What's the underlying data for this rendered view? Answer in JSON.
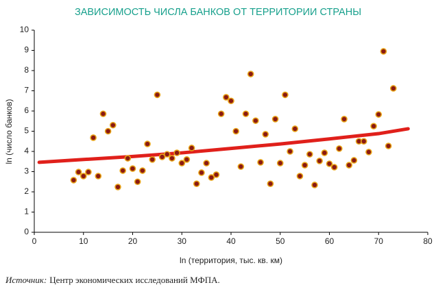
{
  "chart_data": {
    "type": "scatter",
    "title": "ЗАВИСИМОСТЬ ЧИСЛА БАНКОВ ОТ ТЕРРИТОРИИ СТРАНЫ",
    "xlabel": "ln (территория, тыс. кв. км)",
    "ylabel": "ln (число банков)",
    "xlim": [
      0,
      80
    ],
    "xticks": [
      0,
      10,
      20,
      30,
      40,
      50,
      60,
      70,
      80
    ],
    "ylim": [
      0,
      10
    ],
    "yticks": [
      0,
      1,
      2,
      3,
      4,
      5,
      6,
      7,
      8,
      9,
      10
    ],
    "grid": false,
    "color": "#8b1a12",
    "edgecolor": "#e8a317",
    "x": [
      8,
      9,
      10,
      11,
      12,
      13,
      14,
      15,
      16,
      17,
      18,
      19,
      20,
      21,
      22,
      23,
      24,
      25,
      26,
      27,
      28,
      29,
      30,
      31,
      32,
      33,
      34,
      35,
      36,
      37,
      38,
      39,
      40,
      41,
      42,
      43,
      44,
      45,
      46,
      47,
      48,
      49,
      50,
      51,
      52,
      53,
      54,
      55,
      56,
      57,
      58,
      59,
      60,
      61,
      62,
      63,
      64,
      65,
      66,
      67,
      68,
      69,
      70,
      71,
      72,
      73
    ],
    "values": [
      2.58,
      2.98,
      2.78,
      2.98,
      4.68,
      2.78,
      5.86,
      5.0,
      5.3,
      2.24,
      3.05,
      3.66,
      3.15,
      2.5,
      3.05,
      4.37,
      3.6,
      6.8,
      3.73,
      3.86,
      3.66,
      3.93,
      3.42,
      3.6,
      4.17,
      2.4,
      2.95,
      3.42,
      2.71,
      2.85,
      5.86,
      6.68,
      6.5,
      5.0,
      3.25,
      5.86,
      7.83,
      5.52,
      3.46,
      4.85,
      2.4,
      5.6,
      3.42,
      6.8,
      4.0,
      5.12,
      2.78,
      3.32,
      3.86,
      2.34,
      3.53,
      3.93,
      3.39,
      3.22,
      4.14,
      5.6,
      3.32,
      3.56,
      4.5,
      4.5,
      3.97,
      5.25,
      5.83,
      8.95,
      4.27,
      7.12
    ],
    "trend": {
      "color": "#e0201b",
      "x": [
        1,
        10,
        20,
        30,
        40,
        50,
        60,
        70,
        76
      ],
      "values": [
        3.46,
        3.6,
        3.75,
        3.93,
        4.15,
        4.37,
        4.62,
        4.88,
        5.12
      ]
    },
    "source_label": "Источник:",
    "source_text": "Центр экономических исследований МФПА."
  }
}
